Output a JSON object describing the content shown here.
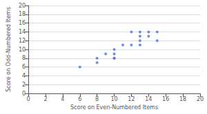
{
  "chart_data": {
    "type": "scatter",
    "x": [
      6,
      8,
      8,
      9,
      10,
      10,
      10,
      10,
      11,
      12,
      12,
      13,
      13,
      13,
      13,
      14,
      14,
      15,
      15
    ],
    "values": [
      6,
      8,
      7,
      9,
      10,
      9,
      8,
      8,
      11,
      14,
      11,
      14,
      13,
      12,
      11,
      14,
      13,
      14,
      12
    ],
    "xlabel": "Score on Even-Numbered Items",
    "ylabel": "Score on Odd-Numbered Items",
    "xlim": [
      0,
      20
    ],
    "ylim": [
      0,
      20
    ],
    "xticks": [
      0,
      2,
      4,
      6,
      8,
      10,
      12,
      14,
      16,
      18,
      20
    ],
    "yticks": [
      0,
      2,
      4,
      6,
      8,
      10,
      12,
      14,
      16,
      18,
      20
    ],
    "grid": true
  }
}
